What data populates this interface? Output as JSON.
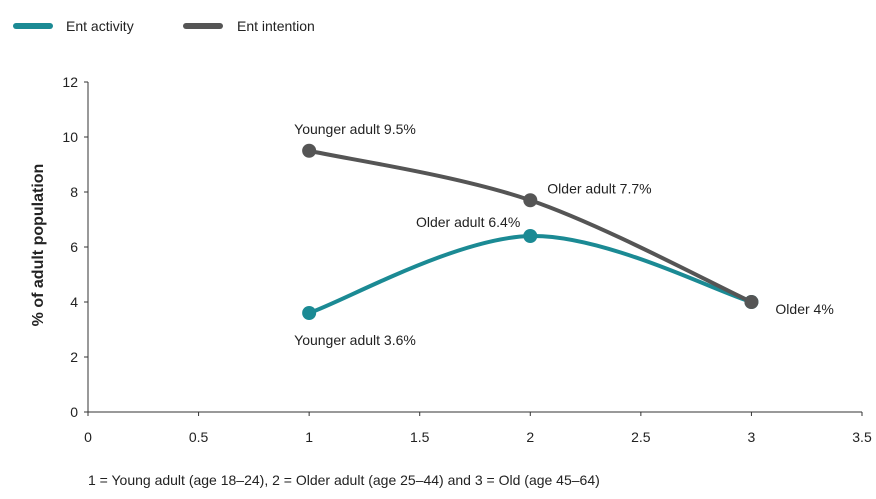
{
  "chart_data": {
    "type": "line",
    "title": "",
    "xlabel": "",
    "ylabel": "% of adult population",
    "xlim": [
      0,
      3.5
    ],
    "ylim": [
      0,
      12
    ],
    "xticks": [
      "0",
      "0.5",
      "1",
      "1.5",
      "2",
      "2.5",
      "3",
      "3.5"
    ],
    "yticks": [
      "0",
      "2",
      "4",
      "6",
      "8",
      "10",
      "12"
    ],
    "grid": false,
    "legend_position": "top-left",
    "series": [
      {
        "name": "Ent activity",
        "color": "#1b8a94",
        "x": [
          1,
          2,
          3
        ],
        "y": [
          3.6,
          6.4,
          4.0
        ],
        "labels": [
          "Younger adult 3.6%",
          "Older adult 6.4%",
          ""
        ]
      },
      {
        "name": "Ent intention",
        "color": "#555555",
        "x": [
          1,
          2,
          3
        ],
        "y": [
          9.5,
          7.7,
          4.0
        ],
        "labels": [
          "Younger adult 9.5%",
          "Older adult 7.7%",
          "Older 4%"
        ]
      }
    ],
    "caption": "1 = Young adult (age 18–24), 2 = Older adult (age 25–44) and 3 = Old (age 45–64)"
  }
}
